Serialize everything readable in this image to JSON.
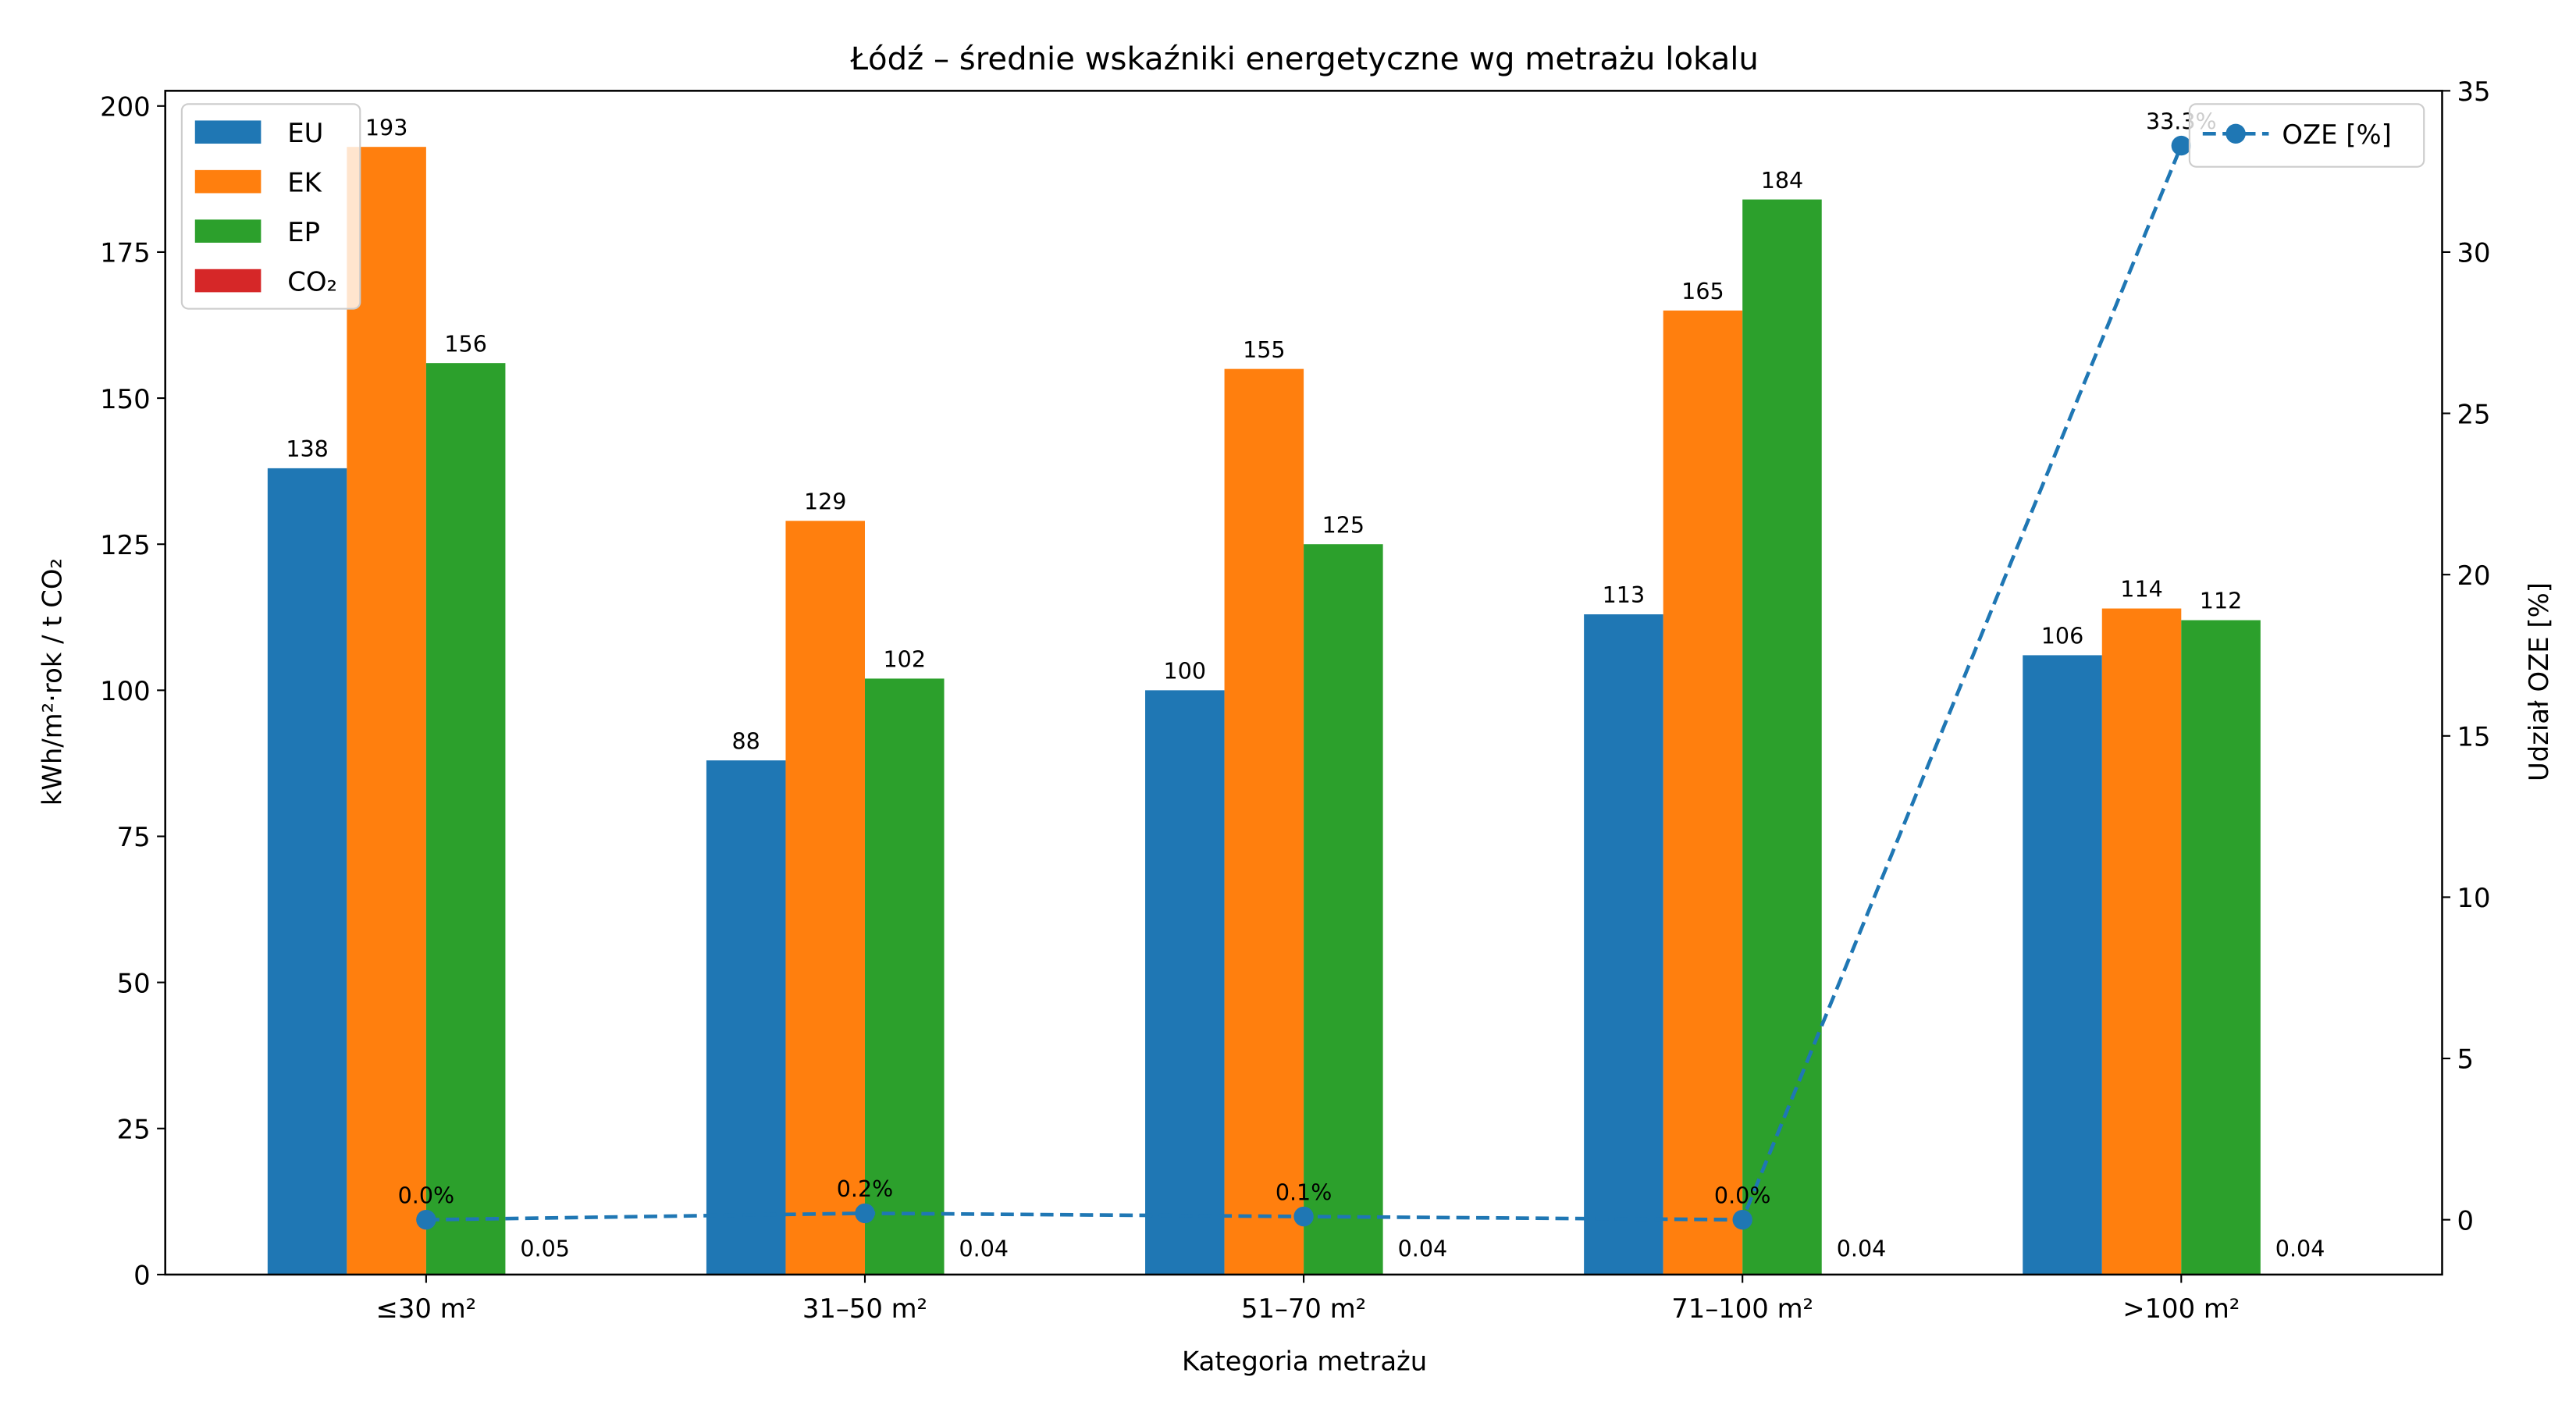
{
  "chart_data": {
    "type": "bar",
    "title": "Łódź – średnie wskaźniki energetyczne wg metrażu lokalu",
    "xlabel": "Kategoria metrażu",
    "ylabel": "kWh/m²·rok / t CO₂",
    "ylabel_right": "Udział OZE [%]",
    "categories": [
      "≤30 m²",
      "31–50 m²",
      "51–70 m²",
      "71–100 m²",
      ">100 m²"
    ],
    "ylim": [
      0,
      202.6
    ],
    "yticks": [
      0,
      25,
      50,
      75,
      100,
      125,
      150,
      175,
      200
    ],
    "ylim_right": [
      -1.7,
      35
    ],
    "yticks_right": [
      0,
      5,
      10,
      15,
      20,
      25,
      30,
      35
    ],
    "series": [
      {
        "name": "EU",
        "color": "#1f77b4",
        "values": [
          138,
          88,
          100,
          113,
          106
        ],
        "labels": [
          "138",
          "88",
          "100",
          "113",
          "106"
        ]
      },
      {
        "name": "EK",
        "color": "#ff7f0e",
        "values": [
          193,
          129,
          155,
          165,
          114
        ],
        "labels": [
          "193",
          "129",
          "155",
          "165",
          "114"
        ]
      },
      {
        "name": "EP",
        "color": "#2ca02c",
        "values": [
          156,
          102,
          125,
          184,
          112
        ],
        "labels": [
          "156",
          "102",
          "125",
          "184",
          "112"
        ]
      },
      {
        "name": "CO₂",
        "color": "#d62728",
        "values": [
          0.05,
          0.04,
          0.04,
          0.04,
          0.04
        ],
        "labels": [
          "0.05",
          "0.04",
          "0.04",
          "0.04",
          "0.04"
        ]
      }
    ],
    "line_series": {
      "name": "OZE [%]",
      "color": "#1f77b4",
      "style": "dashed",
      "marker": "circle",
      "axis": "right",
      "values": [
        0.0,
        0.2,
        0.1,
        0.0,
        33.3
      ],
      "labels": [
        "0.0%",
        "0.2%",
        "0.1%",
        "0.0%",
        "33.3%"
      ]
    },
    "legend_left": "top-left",
    "legend_right": "top-right",
    "grid": false
  }
}
